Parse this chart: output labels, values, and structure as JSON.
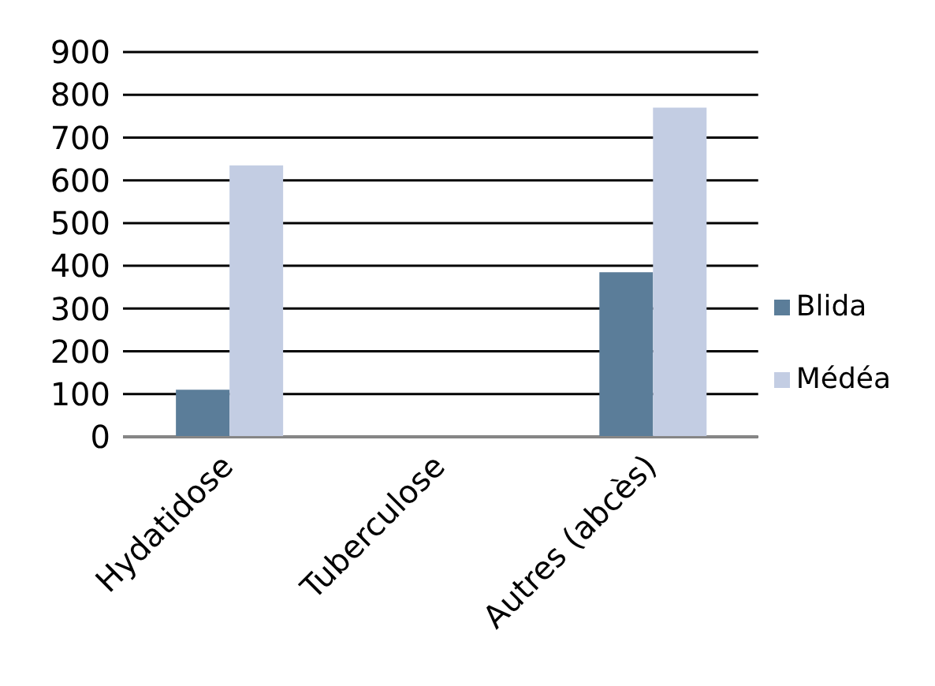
{
  "chart_data": {
    "type": "bar",
    "categories": [
      "Hydatidose",
      "Tuberculose",
      "Autres (abcès)"
    ],
    "series": [
      {
        "name": "Blida",
        "color": "#5b7d99",
        "values": [
          110,
          0,
          385
        ]
      },
      {
        "name": "Médéa",
        "color": "#c3cde3",
        "values": [
          635,
          0,
          770
        ]
      }
    ],
    "ylim": [
      0,
      900
    ],
    "yticks": [
      0,
      100,
      200,
      300,
      400,
      500,
      600,
      700,
      800,
      900
    ],
    "grid": "y",
    "legend": "right"
  }
}
